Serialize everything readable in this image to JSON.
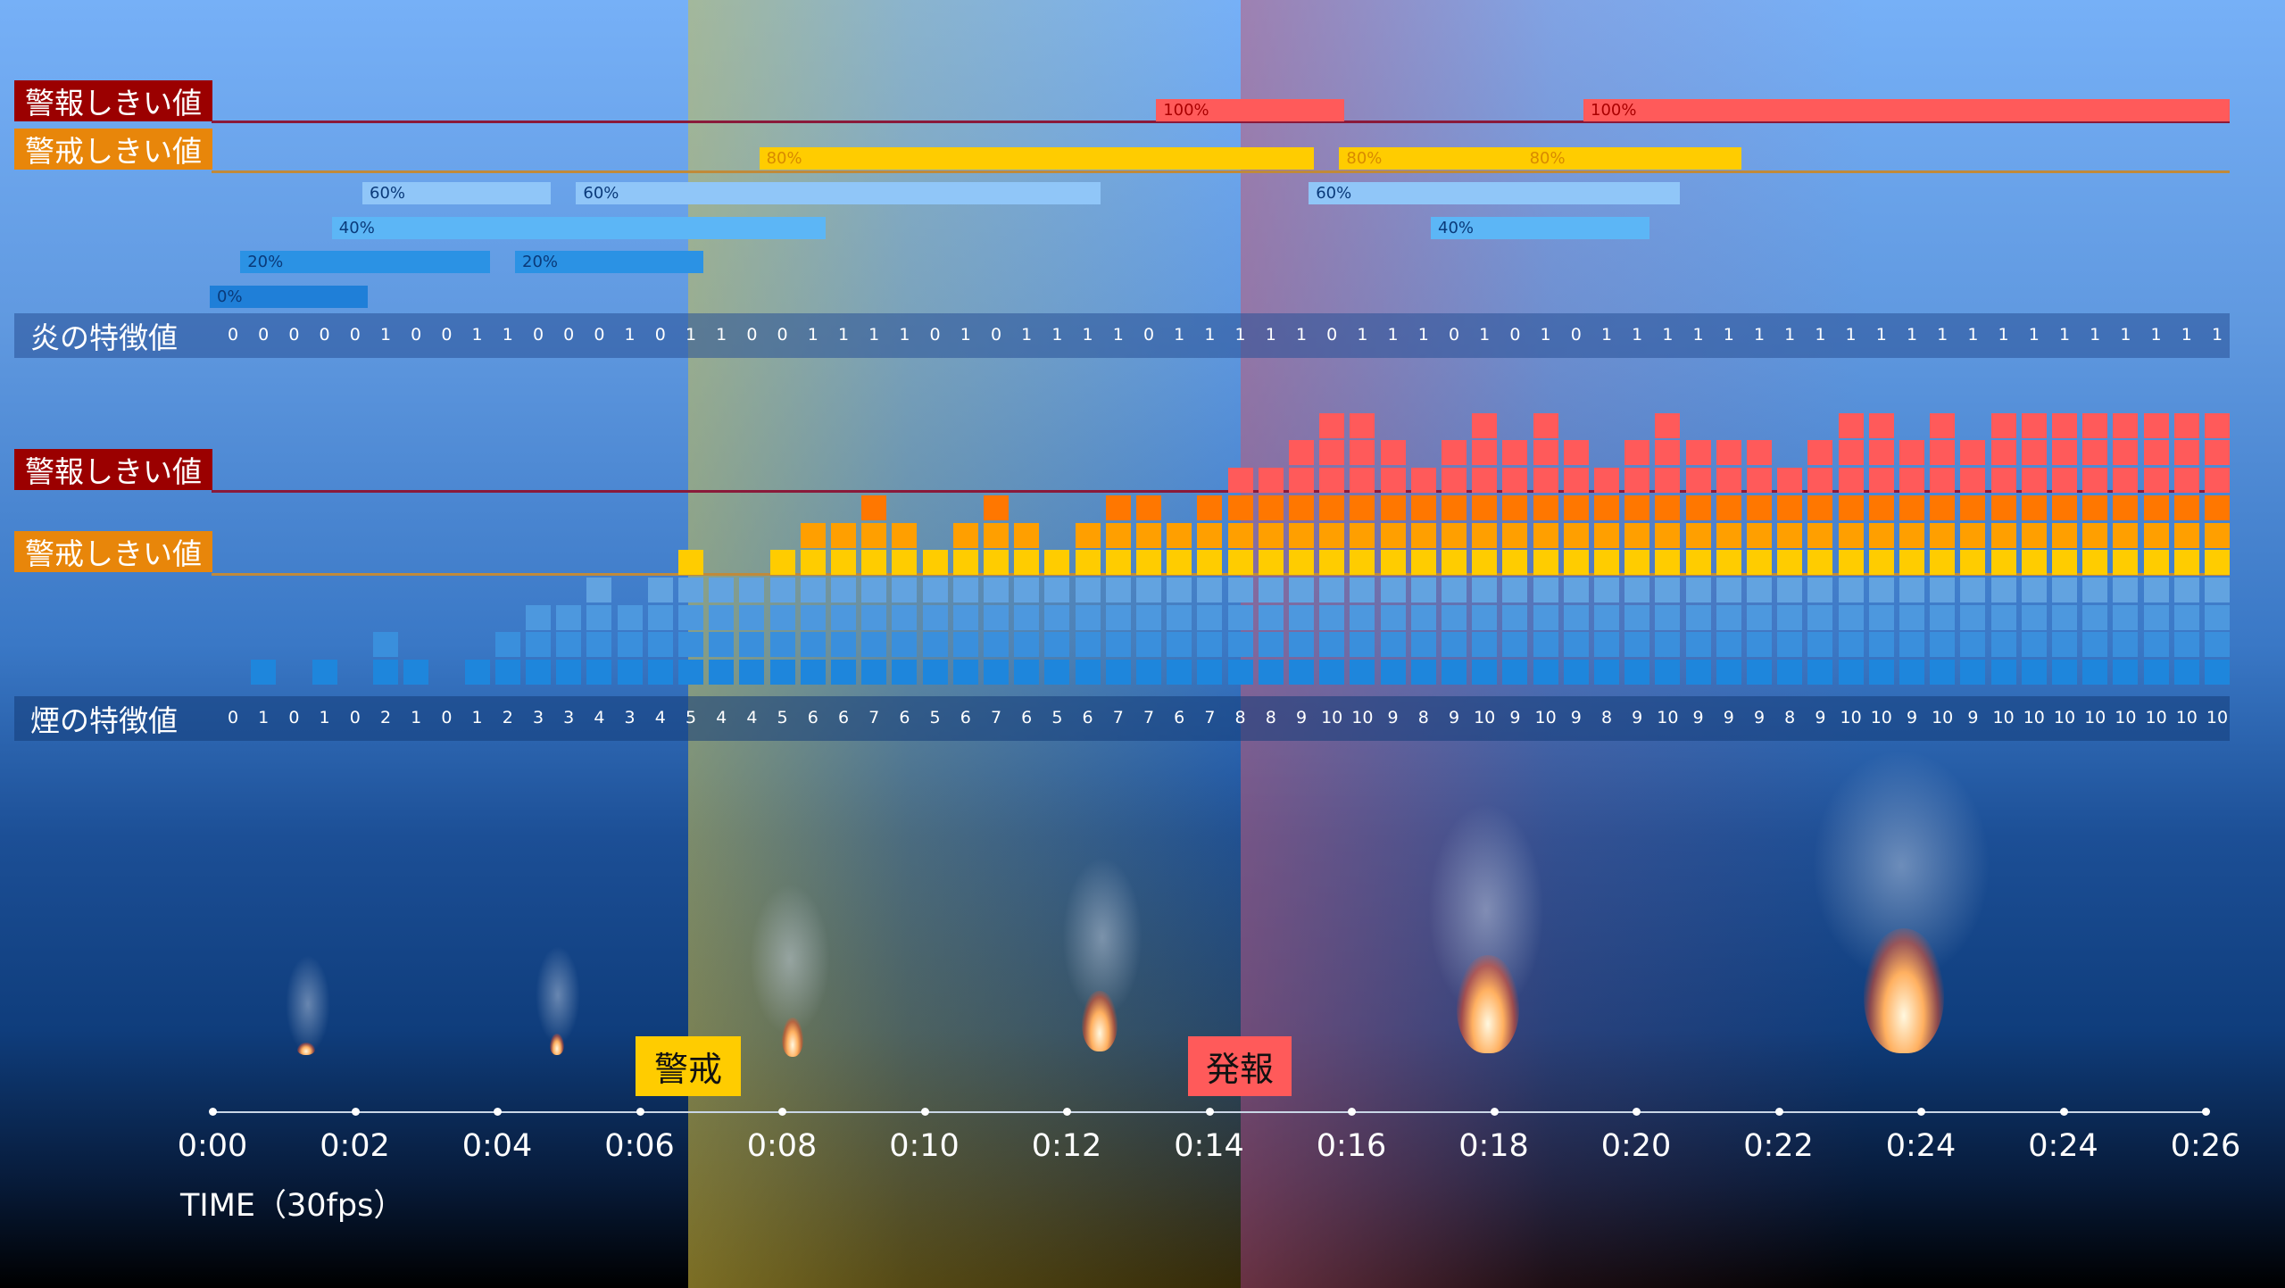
{
  "flame_section": {
    "alarm_label": "警報しきい値",
    "warning_label": "警戒しきい値",
    "row_title": "炎の特徴値",
    "bars": [
      {
        "label": "100%",
        "level": 100,
        "start_frame": 31,
        "end_frame": 36
      },
      {
        "label": "100%",
        "level": 100,
        "start_frame": 45,
        "end_frame": 65
      },
      {
        "label": "80%",
        "level": 80,
        "start_frame": 18,
        "end_frame": 35
      },
      {
        "label": "80%",
        "level": 80,
        "start_frame": 37,
        "end_frame": 42
      },
      {
        "label": "80%",
        "level": 80,
        "start_frame": 43,
        "end_frame": 49
      },
      {
        "label": "60%",
        "level": 60,
        "start_frame": 5,
        "end_frame": 10
      },
      {
        "label": "60%",
        "level": 60,
        "start_frame": 12,
        "end_frame": 28
      },
      {
        "label": "60%",
        "level": 60,
        "start_frame": 36,
        "end_frame": 47
      },
      {
        "label": "40%",
        "level": 40,
        "start_frame": 4,
        "end_frame": 19
      },
      {
        "label": "40%",
        "level": 40,
        "start_frame": 40,
        "end_frame": 46
      },
      {
        "label": "20%",
        "level": 20,
        "start_frame": 1,
        "end_frame": 8
      },
      {
        "label": "20%",
        "level": 20,
        "start_frame": 10,
        "end_frame": 15
      },
      {
        "label": "0%",
        "level": 0,
        "start_frame": 0,
        "end_frame": 4
      }
    ],
    "values": [
      0,
      0,
      0,
      0,
      0,
      1,
      0,
      0,
      1,
      1,
      0,
      0,
      0,
      1,
      0,
      1,
      1,
      0,
      0,
      1,
      1,
      1,
      1,
      0,
      1,
      0,
      1,
      1,
      1,
      1,
      0,
      1,
      1,
      1,
      1,
      1,
      0,
      1,
      1,
      1,
      0,
      1,
      0,
      1,
      0,
      1,
      1,
      1,
      1,
      1,
      1,
      1,
      1,
      1,
      1,
      1,
      1,
      1,
      1,
      1,
      1,
      1,
      1,
      1,
      1,
      1
    ]
  },
  "smoke_section": {
    "alarm_label": "警報しきい値",
    "warning_label": "警戒しきい値",
    "row_title": "煙の特徴値",
    "warning_level": 5,
    "alarm_level": 8,
    "values": [
      0,
      1,
      0,
      1,
      0,
      2,
      1,
      0,
      1,
      2,
      3,
      3,
      4,
      3,
      4,
      5,
      4,
      4,
      5,
      6,
      6,
      7,
      6,
      5,
      6,
      7,
      6,
      5,
      6,
      7,
      7,
      6,
      7,
      8,
      8,
      9,
      10,
      10,
      9,
      8,
      9,
      10,
      9,
      10,
      9,
      8,
      9,
      10,
      9,
      9,
      9,
      8,
      9,
      10,
      10,
      9,
      10,
      9,
      10,
      10,
      10,
      10,
      10,
      10,
      10,
      10
    ]
  },
  "colors": {
    "level1": "#1e86dc",
    "level2": "#3a8fdc",
    "level3": "#4d98de",
    "level4": "#62a3e0",
    "level5": "#ffcc00",
    "level6": "#ff9f00",
    "level7": "#ff7700",
    "level8": "#ff5a5a",
    "level9": "#ff5a5a",
    "level10": "#ff5a5a"
  },
  "badges": {
    "warning": "警戒",
    "alarm": "発報"
  },
  "timeline": {
    "ticks": [
      "0:00",
      "0:02",
      "0:04",
      "0:06",
      "0:08",
      "0:10",
      "0:12",
      "0:14",
      "0:16",
      "0:18",
      "0:20",
      "0:22",
      "0:24",
      "0:24",
      "0:26"
    ],
    "label": "TIME（30fps）"
  }
}
